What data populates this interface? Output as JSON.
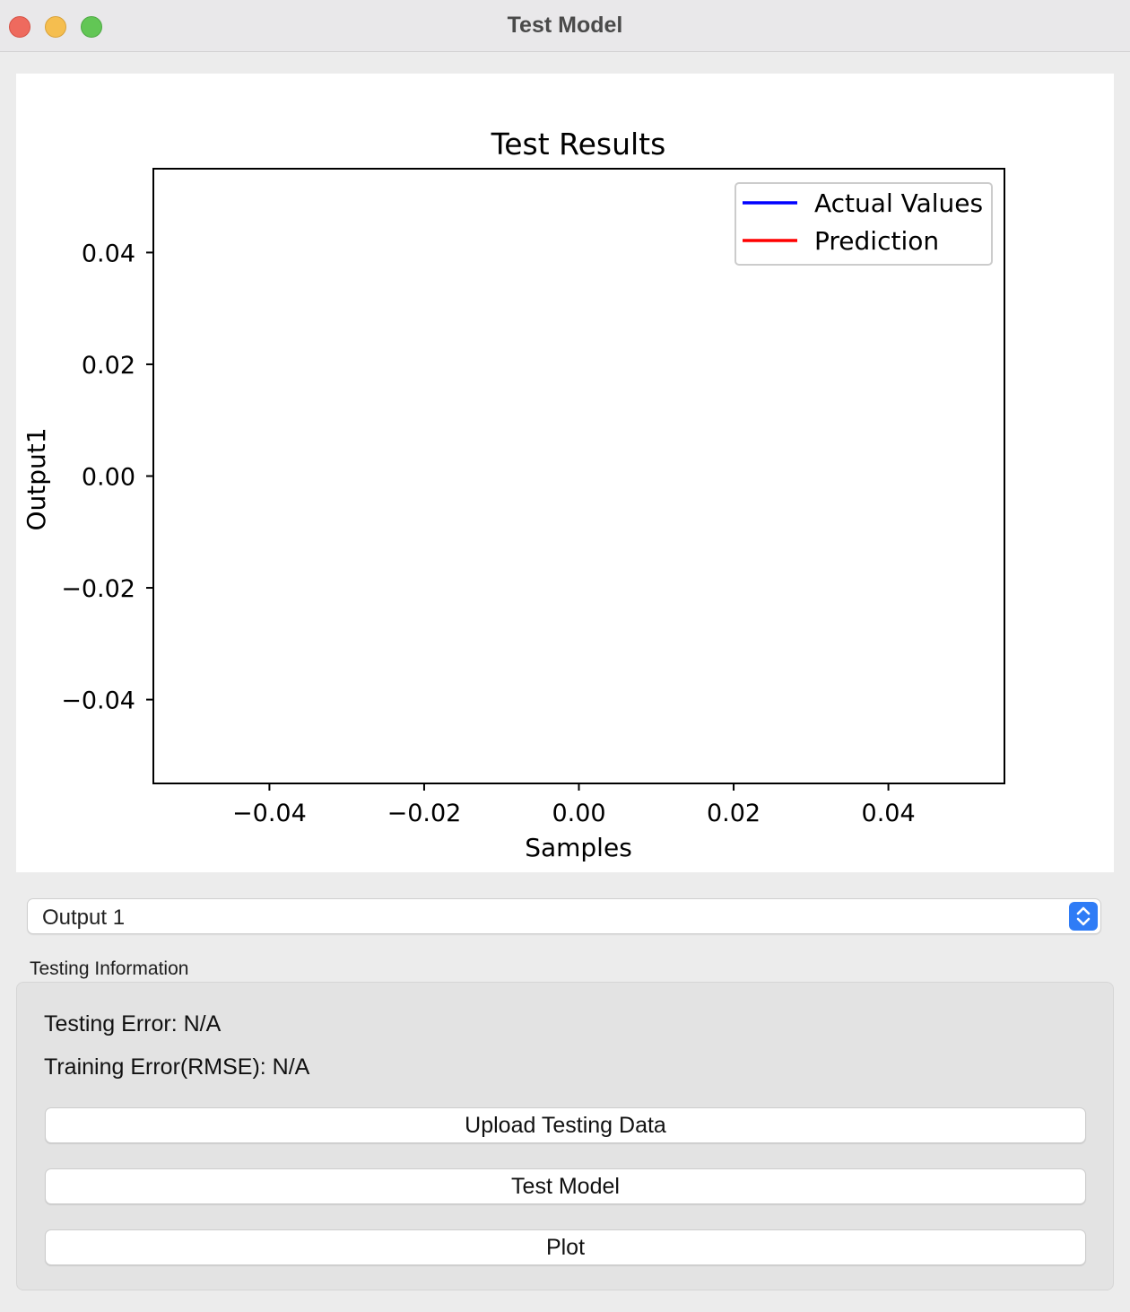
{
  "window": {
    "title": "Test Model"
  },
  "chart_data": {
    "type": "line",
    "title": "Test Results",
    "xlabel": "Samples",
    "ylabel": "Output1",
    "xlim": [
      -0.055,
      0.055
    ],
    "ylim": [
      -0.055,
      0.055
    ],
    "x_ticks": [
      -0.04,
      -0.02,
      0.0,
      0.02,
      0.04
    ],
    "x_tick_labels": [
      "−0.04",
      "−0.02",
      "0.00",
      "0.02",
      "0.04"
    ],
    "y_ticks": [
      0.04,
      0.02,
      0.0,
      -0.02,
      -0.04
    ],
    "y_tick_labels": [
      "0.04",
      "0.02",
      "0.00",
      "−0.02",
      "−0.04"
    ],
    "grid": false,
    "legend_position": "top-right",
    "series": [
      {
        "name": "Actual Values",
        "color": "#0000ff",
        "x": [],
        "y": []
      },
      {
        "name": "Prediction",
        "color": "#ff0000",
        "x": [],
        "y": []
      }
    ]
  },
  "output_select": {
    "value": "Output 1"
  },
  "testing_info": {
    "group_title": "Testing Information",
    "testing_error": "Testing Error: N/A",
    "training_error": "Training Error(RMSE): N/A"
  },
  "buttons": {
    "upload": "Upload Testing Data",
    "test": "Test Model",
    "plot": "Plot"
  }
}
